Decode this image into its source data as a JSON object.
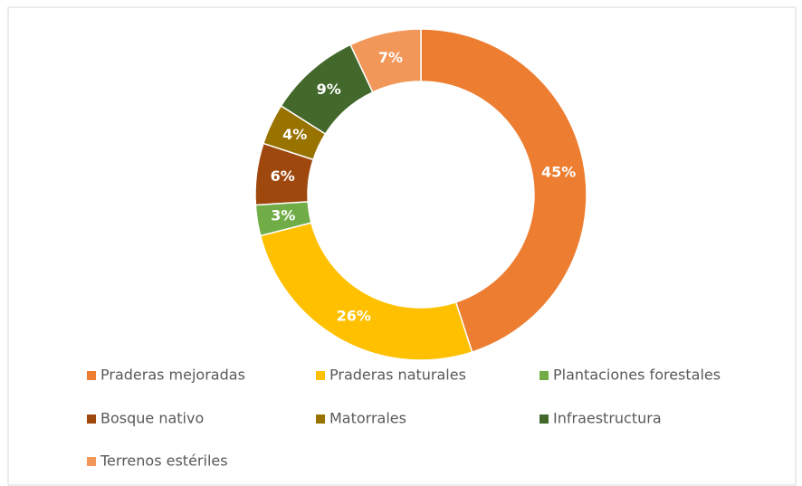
{
  "chart_data": {
    "type": "donut",
    "categories": [
      "Praderas mejoradas",
      "Praderas naturales",
      "Plantaciones forestales",
      "Bosque nativo",
      "Matorrales",
      "Infraestructura",
      "Terrenos estériles"
    ],
    "values": [
      45,
      26,
      3,
      6,
      4,
      9,
      7
    ],
    "value_labels": [
      "45%",
      "26%",
      "3%",
      "6%",
      "4%",
      "9%",
      "7%"
    ],
    "colors": [
      "#ED7D31",
      "#FFC000",
      "#70AD47",
      "#9E480E",
      "#997300",
      "#43682B",
      "#F1975A"
    ],
    "legend": "bottom"
  }
}
